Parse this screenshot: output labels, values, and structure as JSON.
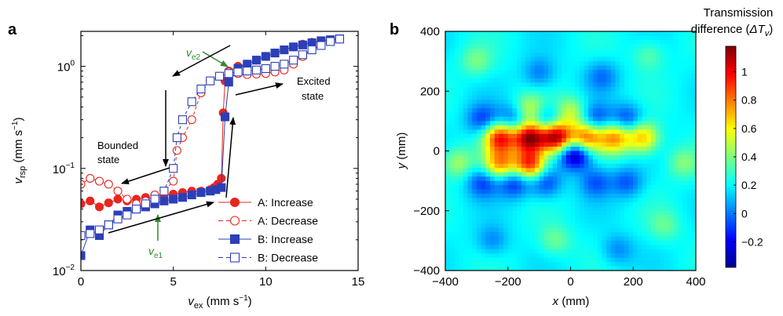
{
  "panels": {
    "a": {
      "letter": "a",
      "chart_data": {
        "type": "scatter",
        "xlabel": {
          "main": "v",
          "sub": "ex",
          "unit_pre": " (mm s",
          "unit_sup": "−1",
          "unit_post": ")"
        },
        "ylabel": {
          "main": "v",
          "sub": "rsp",
          "unit_pre": " (mm s",
          "unit_sup": "−1",
          "unit_post": ")"
        },
        "xlim": [
          0,
          15
        ],
        "ylim": [
          0.01,
          2.2
        ],
        "yscale": "log",
        "xticks": [
          0,
          5,
          10,
          15
        ],
        "xtick_labels": [
          "0",
          "5",
          "10",
          "15"
        ],
        "yticks": [
          0.01,
          0.1,
          1
        ],
        "ytick_labels": [
          {
            "base": "10",
            "exp": "−2"
          },
          {
            "base": "10",
            "exp": "−1"
          },
          {
            "base": "10",
            "exp": "0"
          }
        ],
        "grid": false,
        "legend_position": "bottom-right",
        "series": [
          {
            "name": "A: Increase",
            "color": "#e8261e",
            "marker": "circle",
            "filled": true,
            "linestyle": "solid",
            "x": [
              0,
              0.5,
              1,
              1.5,
              2,
              2.5,
              3,
              3.5,
              4,
              4.5,
              5,
              5.5,
              6,
              6.5,
              7,
              7.2,
              7.4,
              7.6,
              7.7,
              7.8,
              8,
              8.5,
              9,
              9.5,
              10,
              10.5,
              11,
              11.5,
              12,
              12.5,
              13,
              13.5,
              14
            ],
            "y": [
              0.045,
              0.048,
              0.042,
              0.046,
              0.05,
              0.048,
              0.05,
              0.052,
              0.05,
              0.055,
              0.056,
              0.058,
              0.06,
              0.06,
              0.062,
              0.065,
              0.07,
              0.08,
              0.35,
              0.72,
              0.9,
              1.0,
              1.05,
              1.15,
              1.25,
              1.35,
              1.45,
              1.55,
              1.65,
              1.72,
              1.78,
              1.82,
              1.86
            ]
          },
          {
            "name": "A: Decrease",
            "color": "#e8261e",
            "marker": "circle",
            "filled": false,
            "linestyle": "dashed",
            "x": [
              14,
              13.5,
              13,
              12.5,
              12,
              11.5,
              11,
              10.5,
              10,
              9.5,
              9,
              8.5,
              8,
              7.5,
              7,
              6.5,
              6,
              5.5,
              5.2,
              5,
              4.5,
              4,
              3.5,
              3,
              2.5,
              2,
              1.5,
              1,
              0.5,
              0
            ],
            "y": [
              1.85,
              1.78,
              1.62,
              1.45,
              1.25,
              1.05,
              0.92,
              0.88,
              0.85,
              0.84,
              0.83,
              0.85,
              0.88,
              0.8,
              0.72,
              0.55,
              0.3,
              0.2,
              0.15,
              0.075,
              0.06,
              0.055,
              0.048,
              0.045,
              0.05,
              0.06,
              0.07,
              0.075,
              0.08,
              0.07
            ]
          },
          {
            "name": "B: Increase",
            "color": "#2b3fb8",
            "marker": "square",
            "filled": true,
            "linestyle": "solid",
            "x": [
              0,
              0.5,
              1,
              1.5,
              2,
              2.5,
              3,
              3.5,
              4,
              4.5,
              5,
              5.5,
              6,
              6.5,
              7,
              7.3,
              7.6,
              7.8,
              8,
              8.5,
              9,
              9.5,
              10,
              10.5,
              11,
              11.5,
              12,
              12.5,
              13,
              13.5,
              14
            ],
            "y": [
              0.014,
              0.025,
              0.022,
              0.028,
              0.035,
              0.038,
              0.04,
              0.042,
              0.045,
              0.048,
              0.05,
              0.052,
              0.055,
              0.058,
              0.06,
              0.062,
              0.065,
              0.32,
              0.7,
              0.95,
              1.05,
              1.15,
              1.25,
              1.35,
              1.45,
              1.55,
              1.62,
              1.7,
              1.78,
              1.82,
              1.86
            ]
          },
          {
            "name": "B: Decrease",
            "color": "#2b3fb8",
            "marker": "square",
            "filled": false,
            "linestyle": "dashed",
            "x": [
              14,
              13.5,
              13,
              12.5,
              12,
              11.5,
              11,
              10.5,
              10,
              9.5,
              9,
              8.5,
              8,
              7.5,
              7,
              6.5,
              6,
              5.5,
              5.2,
              5,
              4.5,
              4,
              3.5,
              3,
              2.5,
              2,
              1.5,
              1,
              0.5,
              0
            ],
            "y": [
              1.85,
              1.75,
              1.6,
              1.45,
              1.3,
              1.15,
              1.05,
              1.0,
              0.95,
              0.92,
              0.9,
              0.88,
              0.85,
              0.8,
              0.72,
              0.6,
              0.45,
              0.3,
              0.2,
              0.1,
              0.06,
              0.05,
              0.045,
              0.04,
              0.035,
              0.032,
              0.028,
              0.025,
              0.023,
              0.022
            ]
          }
        ],
        "annotations": [
          {
            "id": "ve2",
            "main": "v",
            "sub": "e2",
            "color": "#2e8b2e"
          },
          {
            "id": "ve1",
            "main": "v",
            "sub": "e1",
            "color": "#2e8b2e"
          },
          {
            "id": "excited",
            "lines": [
              "Excited",
              "state"
            ],
            "color": "#000000"
          },
          {
            "id": "bounded",
            "lines": [
              "Bounded",
              "state"
            ],
            "color": "#000000"
          }
        ]
      }
    },
    "b": {
      "letter": "b",
      "chart_data": {
        "type": "heatmap",
        "xlabel": {
          "main": "x",
          "unit": " (mm)"
        },
        "ylabel": {
          "main": "y",
          "unit": " (mm)"
        },
        "xlim": [
          -400,
          400
        ],
        "ylim": [
          -400,
          400
        ],
        "xticks": [
          -400,
          -200,
          0,
          200,
          400
        ],
        "xtick_labels": [
          "−400",
          "−200",
          "0",
          "200",
          "400"
        ],
        "yticks": [
          -400,
          -200,
          0,
          200,
          400
        ],
        "ytick_labels": [
          "−400",
          "−200",
          "0",
          "200",
          "400"
        ],
        "colorbar": {
          "title_line1": "Transmission",
          "title_line2_pre": "difference (",
          "title_line2_var": "ΔT",
          "title_line2_sub": "v",
          "title_line2_post": ")",
          "range": [
            -0.38,
            1.18
          ],
          "ticks": [
            -0.2,
            0,
            0.2,
            0.4,
            0.6,
            0.8,
            1
          ],
          "tick_labels": [
            "−0.2",
            "0",
            "0.2",
            "0.4",
            "0.6",
            "0.8",
            "1"
          ],
          "colormap": "jet"
        },
        "peaks": [
          {
            "x": -225,
            "y": 45,
            "amp": 0.75
          },
          {
            "x": -130,
            "y": 45,
            "amp": 0.95
          },
          {
            "x": -45,
            "y": 45,
            "amp": 0.95
          },
          {
            "x": 50,
            "y": 45,
            "amp": 0.65
          },
          {
            "x": 140,
            "y": 45,
            "amp": 0.55
          },
          {
            "x": 230,
            "y": 45,
            "amp": 0.5
          },
          {
            "x": -225,
            "y": -45,
            "amp": 0.55
          },
          {
            "x": -130,
            "y": -45,
            "amp": 0.75
          },
          {
            "x": -130,
            "y": 135,
            "amp": 0.35
          },
          {
            "x": 0,
            "y": 130,
            "amp": 0.3
          },
          {
            "x": 15,
            "y": -10,
            "amp": -0.6
          },
          {
            "x": -280,
            "y": 105,
            "amp": -0.3
          },
          {
            "x": -180,
            "y": 105,
            "amp": -0.3
          },
          {
            "x": -80,
            "y": 105,
            "amp": -0.3
          },
          {
            "x": 80,
            "y": 105,
            "amp": -0.3
          },
          {
            "x": 180,
            "y": 105,
            "amp": -0.3
          },
          {
            "x": -280,
            "y": -105,
            "amp": -0.3
          },
          {
            "x": -180,
            "y": -105,
            "amp": -0.35
          },
          {
            "x": -80,
            "y": -105,
            "amp": -0.3
          },
          {
            "x": 80,
            "y": -105,
            "amp": -0.25
          },
          {
            "x": 180,
            "y": -105,
            "amp": -0.25
          },
          {
            "x": -360,
            "y": -40,
            "amp": 0.25
          },
          {
            "x": 360,
            "y": -40,
            "amp": 0.2
          },
          {
            "x": -300,
            "y": 300,
            "amp": 0.18
          },
          {
            "x": 250,
            "y": 320,
            "amp": 0.15
          },
          {
            "x": 100,
            "y": 250,
            "amp": -0.2
          },
          {
            "x": -100,
            "y": 260,
            "amp": -0.2
          },
          {
            "x": 300,
            "y": -250,
            "amp": 0.15
          },
          {
            "x": -50,
            "y": -300,
            "amp": 0.18
          },
          {
            "x": -250,
            "y": -300,
            "amp": -0.18
          },
          {
            "x": 150,
            "y": -330,
            "amp": -0.18
          }
        ]
      }
    }
  }
}
